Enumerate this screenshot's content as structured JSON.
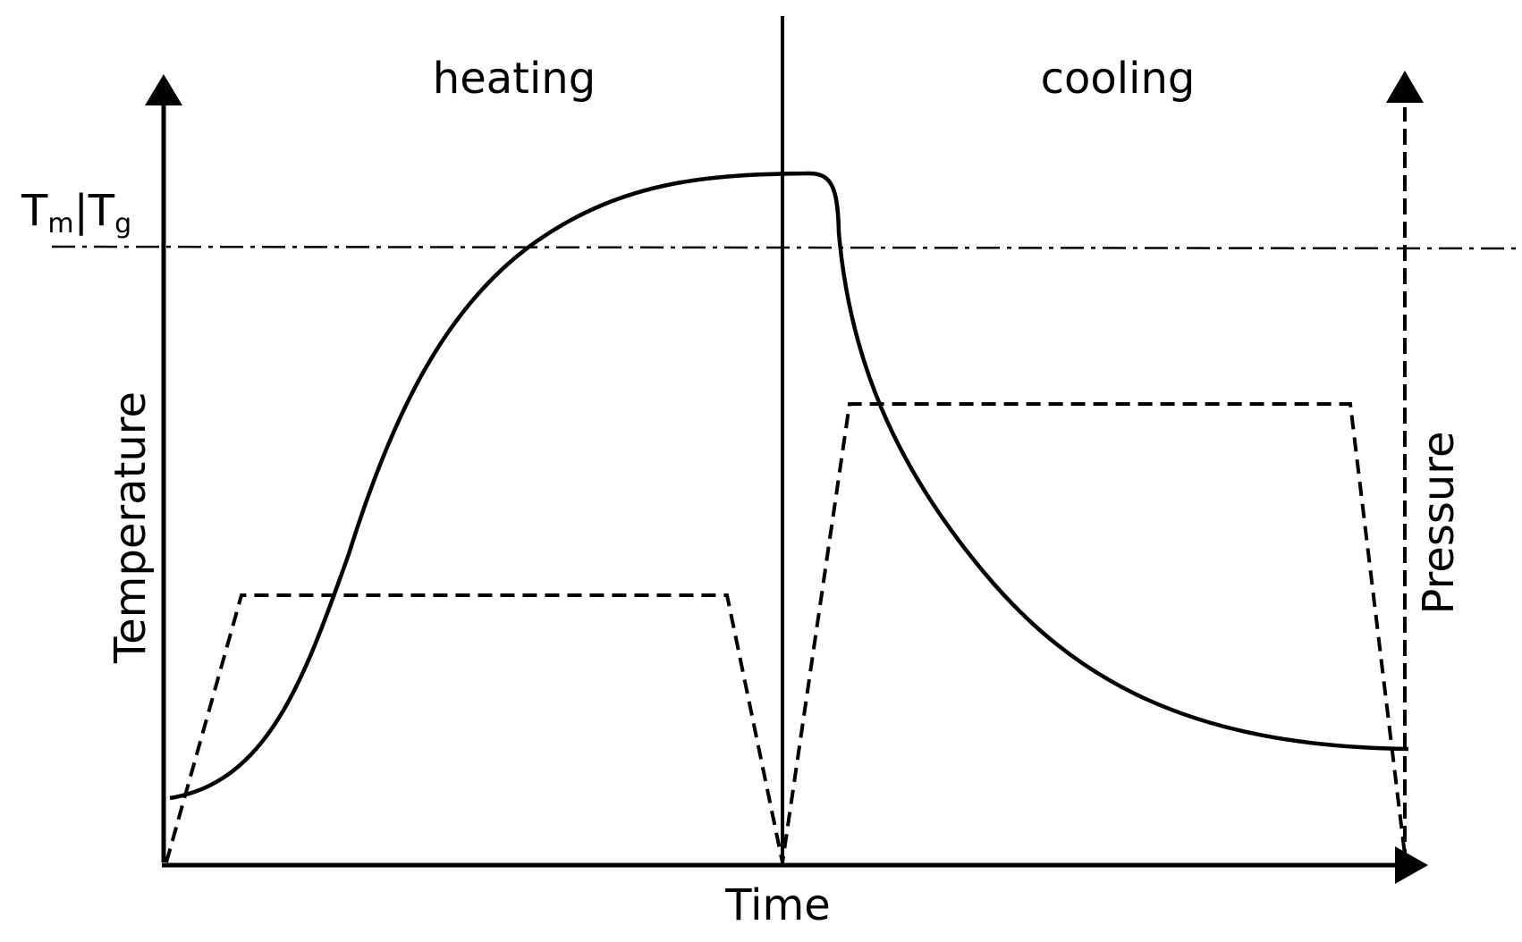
{
  "diagram": {
    "phase_labels": {
      "left": "heating",
      "right": "cooling"
    },
    "axis_labels": {
      "x": "Time",
      "y_left": "Temperature",
      "y_right": "Pressure"
    },
    "threshold_label": {
      "base1": "T",
      "sub1": "m",
      "separator": "|",
      "base2": "T",
      "sub2": "g"
    },
    "colors": {
      "line": "#000000",
      "background": "#ffffff"
    },
    "line_styles": {
      "temperature": "solid",
      "pressure": "dashed",
      "threshold": "dash-dot"
    }
  }
}
